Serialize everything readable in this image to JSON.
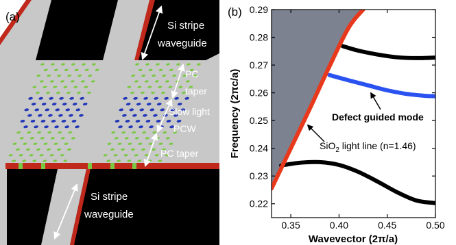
{
  "panel_a": {
    "label": "(a)",
    "annotations": {
      "si_stripe_top": [
        "Si stripe",
        "waveguide"
      ],
      "pc_taper_top": [
        "PC",
        "taper"
      ],
      "slow_light": [
        "Slow light",
        "PCW"
      ],
      "pc_taper_bottom": "PC taper",
      "si_stripe_bottom": [
        "Si stripe",
        "waveguide"
      ]
    },
    "colors": {
      "background": "#ffffff",
      "slab": "#c8c8c8",
      "black_region": "#000000",
      "red_edge": "#c0281c",
      "green_holes": "#7ac943",
      "blue_holes": "#2337b8",
      "arrow": "#ffffff"
    }
  },
  "panel_b": {
    "label": "(b)",
    "annotations": {
      "defect_mode": "Defect guided mode",
      "light_line_prefix": "SiO",
      "light_line_sub": "2",
      "light_line_suffix": " light line (n=1.46)"
    }
  },
  "chart_data": {
    "type": "line",
    "xlabel": "Wavevector (2π/a)",
    "ylabel": "Frequency (2πc/a)",
    "xlim": [
      0.33,
      0.5
    ],
    "ylim": [
      0.215,
      0.29
    ],
    "xticks": [
      0.35,
      0.4,
      0.45,
      0.5
    ],
    "xtick_labels": [
      "0.35",
      "0.40",
      "0.45",
      "0.50"
    ],
    "yticks": [
      0.22,
      0.23,
      0.24,
      0.25,
      0.26,
      0.27,
      0.28,
      0.29
    ],
    "ytick_labels": [
      "0.22",
      "0.23",
      "0.24",
      "0.25",
      "0.26",
      "0.27",
      "0.28",
      "0.29"
    ],
    "grid": false,
    "series": [
      {
        "name": "SiO2 light line (n=1.46)",
        "color": "#e8391c",
        "x": [
          0.33,
          0.35,
          0.37,
          0.39,
          0.41,
          0.425
        ],
        "y": [
          0.2255,
          0.24,
          0.2545,
          0.2695,
          0.2835,
          0.29
        ]
      },
      {
        "name": "Defect guided mode",
        "color": "#2a52f0",
        "x": [
          0.39,
          0.41,
          0.43,
          0.45,
          0.47,
          0.49,
          0.5
        ],
        "y": [
          0.2664,
          0.2645,
          0.2627,
          0.2609,
          0.2596,
          0.2589,
          0.2588
        ]
      },
      {
        "color": "#000000",
        "x": [
          0.404,
          0.42,
          0.44,
          0.46,
          0.48,
          0.5
        ],
        "y": [
          0.2768,
          0.2752,
          0.2738,
          0.2728,
          0.2725,
          0.2727
        ]
      },
      {
        "color": "#000000",
        "x": [
          0.34,
          0.36,
          0.38,
          0.4,
          0.42,
          0.44,
          0.46,
          0.48,
          0.5
        ],
        "y": [
          0.2338,
          0.2348,
          0.235,
          0.234,
          0.2315,
          0.228,
          0.2242,
          0.2212,
          0.2202
        ]
      }
    ],
    "region_colors": {
      "outside_light_cone": "#7d8291",
      "guided": "#ffffff"
    }
  }
}
